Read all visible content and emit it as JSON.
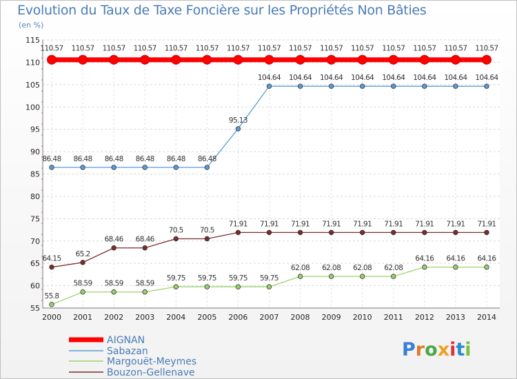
{
  "chart_data": {
    "type": "line",
    "title": "Evolution du Taux de Taxe Foncière sur les Propriétés Non Bâties",
    "ylabel": "(en %)",
    "xlabel": "",
    "ylim": [
      55,
      115
    ],
    "yticks": [
      55,
      60,
      65,
      70,
      75,
      80,
      85,
      90,
      95,
      100,
      105,
      110,
      115
    ],
    "x": [
      "2000",
      "2001",
      "2002",
      "2003",
      "2004",
      "2005",
      "2006",
      "2007",
      "2008",
      "2009",
      "2010",
      "2011",
      "2012",
      "2013",
      "2014"
    ],
    "legend_position": "bottom-left",
    "series": [
      {
        "name": "AIGNAN",
        "color": "#ff0000",
        "values": [
          110.57,
          110.57,
          110.57,
          110.57,
          110.57,
          110.57,
          110.57,
          110.57,
          110.57,
          110.57,
          110.57,
          110.57,
          110.57,
          110.57,
          110.57
        ],
        "labels": [
          "110.57",
          "110.57",
          "110.57",
          "110.57",
          "110.57",
          "110.57",
          "110.57",
          "110.57",
          "110.57",
          "110.57",
          "110.57",
          "110.57",
          "110.57",
          "110.57",
          "110.57"
        ]
      },
      {
        "name": "Sabazan",
        "color": "#5b9bd5",
        "values": [
          86.48,
          86.48,
          86.48,
          86.48,
          86.48,
          86.48,
          95.13,
          104.64,
          104.64,
          104.64,
          104.64,
          104.64,
          104.64,
          104.64,
          104.64
        ],
        "labels": [
          "86.48",
          "86.48",
          "86.48",
          "86.48",
          "86.48",
          "86.48",
          "95.13",
          "104.64",
          "104.64",
          "104.64",
          "104.64",
          "104.64",
          "104.64",
          "104.64",
          "104.64"
        ]
      },
      {
        "name": "Margouët-Meymes",
        "color": "#9bd16b",
        "values": [
          55.8,
          58.59,
          58.59,
          58.59,
          59.75,
          59.75,
          59.75,
          59.75,
          62.08,
          62.08,
          62.08,
          62.08,
          64.16,
          64.16,
          64.16
        ],
        "labels": [
          "55.8",
          "58.59",
          "58.59",
          "58.59",
          "59.75",
          "59.75",
          "59.75",
          "59.75",
          "62.08",
          "62.08",
          "62.08",
          "62.08",
          "64.16",
          "64.16",
          "64.16"
        ]
      },
      {
        "name": "Bouzon-Gellenave",
        "color": "#7b2b2b",
        "values": [
          64.15,
          65.2,
          68.46,
          68.46,
          70.5,
          70.5,
          71.91,
          71.91,
          71.91,
          71.91,
          71.91,
          71.91,
          71.91,
          71.91,
          71.91
        ],
        "labels": [
          "64.15",
          "65.2",
          "68.46",
          "68.46",
          "70.5",
          "70.5",
          "71.91",
          "71.91",
          "71.91",
          "71.91",
          "71.91",
          "71.91",
          "71.91",
          "71.91",
          "71.91"
        ]
      }
    ]
  },
  "logo": {
    "text": "Proxiti"
  }
}
